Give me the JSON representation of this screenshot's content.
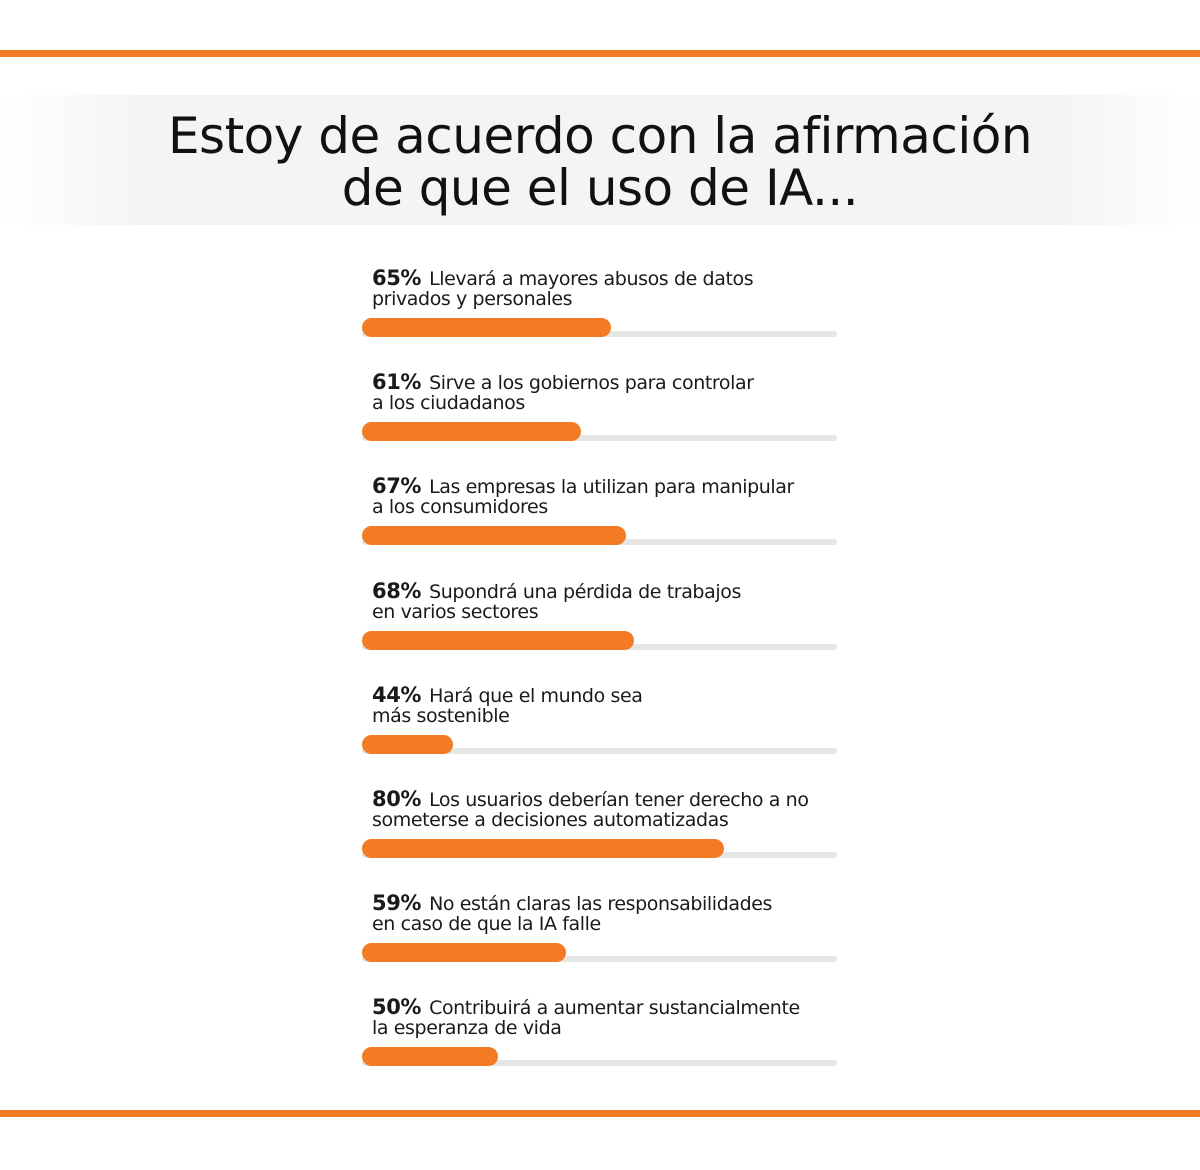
{
  "title_line1": "Estoy de acuerdo con la afirmación",
  "title_line2": "de que el uso de  IA...",
  "accent_color": "#f47a25",
  "track_color": "#e6e6e2",
  "chart_data": {
    "type": "bar",
    "orientation": "horizontal",
    "title": "Estoy de acuerdo con la afirmación de que el uso de  IA...",
    "categories": [
      "Llevará a mayores abusos de datos privados y personales",
      "Sirve a los gobiernos para controlar a los ciudadanos",
      "Las empresas la utilizan para manipular a los consumidores",
      "Supondrá una pérdida de trabajos en varios sectores",
      "Hará que el mundo sea más sostenible",
      "Los usuarios deberían tener derecho a no someterse a decisiones automatizadas",
      "No están claras las responsabilidades en caso de que la IA falle",
      "Contribuirá a aumentar sustancialmente la esperanza de vida"
    ],
    "values": [
      65,
      61,
      67,
      68,
      44,
      80,
      59,
      50
    ],
    "labels": [
      "65%",
      "61%",
      "67%",
      "68%",
      "44%",
      "80%",
      "59%",
      "50%"
    ],
    "lines": [
      [
        "Llevará a mayores abusos de datos",
        "privados y personales"
      ],
      [
        "Sirve a los gobiernos para controlar",
        "a los ciudadanos"
      ],
      [
        "Las empresas la utilizan para manipular",
        "a los consumidores"
      ],
      [
        "Supondrá una pérdida de trabajos",
        "en varios sectores"
      ],
      [
        "Hará que el mundo sea",
        "más sostenible"
      ],
      [
        "Los usuarios deberían tener derecho a no",
        "someterse a decisiones automatizadas"
      ],
      [
        "No están claras las responsabilidades",
        "en caso de que la IA falle"
      ],
      [
        "Contribuirá a aumentar sustancialmente",
        "la esperanza de vida"
      ]
    ],
    "xlim": [
      0,
      100
    ],
    "grid": false,
    "legend": "none"
  }
}
